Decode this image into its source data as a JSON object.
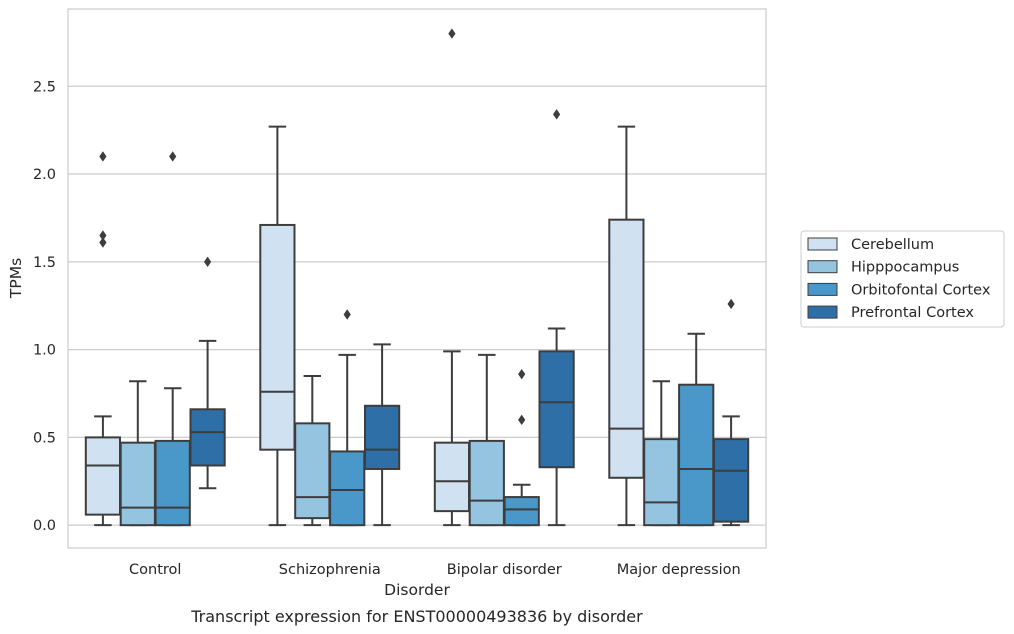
{
  "chart_data": {
    "type": "boxplot",
    "xlabel": "Disorder",
    "ylabel": "TPMs",
    "caption": "Transcript expression for ENST00000493836 by disorder",
    "ylim": [
      -0.13,
      2.94
    ],
    "yticks": [
      0.0,
      0.5,
      1.0,
      1.5,
      2.0,
      2.5
    ],
    "ytick_labels": [
      "0.0",
      "0.5",
      "1.0",
      "1.5",
      "2.0",
      "2.5"
    ],
    "grid": "horizontal",
    "legend_position": "right",
    "categories": [
      "Control",
      "Schizophrenia",
      "Bipolar disorder",
      "Major depression"
    ],
    "series": [
      {
        "name": "Cerebellum",
        "color": "#d0e1f2",
        "boxes": [
          {
            "whisker_low": 0.0,
            "q1": 0.06,
            "median": 0.34,
            "q3": 0.5,
            "whisker_high": 0.62,
            "outliers": [
              1.61,
              1.65,
              2.1
            ]
          },
          {
            "whisker_low": 0.0,
            "q1": 0.43,
            "median": 0.76,
            "q3": 1.71,
            "whisker_high": 2.27,
            "outliers": []
          },
          {
            "whisker_low": 0.0,
            "q1": 0.08,
            "median": 0.25,
            "q3": 0.47,
            "whisker_high": 0.99,
            "outliers": [
              2.8
            ]
          },
          {
            "whisker_low": 0.0,
            "q1": 0.27,
            "median": 0.55,
            "q3": 1.74,
            "whisker_high": 2.27,
            "outliers": []
          }
        ]
      },
      {
        "name": "Hipppocampus",
        "color": "#94c4df",
        "boxes": [
          {
            "whisker_low": 0.0,
            "q1": 0.0,
            "median": 0.1,
            "q3": 0.47,
            "whisker_high": 0.82,
            "outliers": []
          },
          {
            "whisker_low": 0.0,
            "q1": 0.04,
            "median": 0.16,
            "q3": 0.58,
            "whisker_high": 0.85,
            "outliers": []
          },
          {
            "whisker_low": 0.0,
            "q1": 0.0,
            "median": 0.14,
            "q3": 0.48,
            "whisker_high": 0.97,
            "outliers": []
          },
          {
            "whisker_low": 0.0,
            "q1": 0.0,
            "median": 0.13,
            "q3": 0.49,
            "whisker_high": 0.82,
            "outliers": []
          }
        ]
      },
      {
        "name": "Orbitofontal Cortex",
        "color": "#4a98c9",
        "boxes": [
          {
            "whisker_low": 0.0,
            "q1": 0.0,
            "median": 0.1,
            "q3": 0.48,
            "whisker_high": 0.78,
            "outliers": [
              2.1
            ]
          },
          {
            "whisker_low": 0.0,
            "q1": 0.0,
            "median": 0.2,
            "q3": 0.42,
            "whisker_high": 0.97,
            "outliers": [
              1.2
            ]
          },
          {
            "whisker_low": 0.0,
            "q1": 0.0,
            "median": 0.09,
            "q3": 0.16,
            "whisker_high": 0.23,
            "outliers": [
              0.6,
              0.86
            ]
          },
          {
            "whisker_low": 0.0,
            "q1": 0.0,
            "median": 0.32,
            "q3": 0.8,
            "whisker_high": 1.09,
            "outliers": []
          }
        ]
      },
      {
        "name": "Prefrontal Cortex",
        "color": "#2e6fa7",
        "boxes": [
          {
            "whisker_low": 0.21,
            "q1": 0.34,
            "median": 0.53,
            "q3": 0.66,
            "whisker_high": 1.05,
            "outliers": [
              1.5
            ]
          },
          {
            "whisker_low": 0.0,
            "q1": 0.32,
            "median": 0.43,
            "q3": 0.68,
            "whisker_high": 1.03,
            "outliers": []
          },
          {
            "whisker_low": 0.0,
            "q1": 0.33,
            "median": 0.7,
            "q3": 0.99,
            "whisker_high": 1.12,
            "outliers": [
              2.34
            ]
          },
          {
            "whisker_low": 0.0,
            "q1": 0.02,
            "median": 0.31,
            "q3": 0.49,
            "whisker_high": 0.62,
            "outliers": [
              1.26
            ]
          }
        ]
      }
    ]
  }
}
